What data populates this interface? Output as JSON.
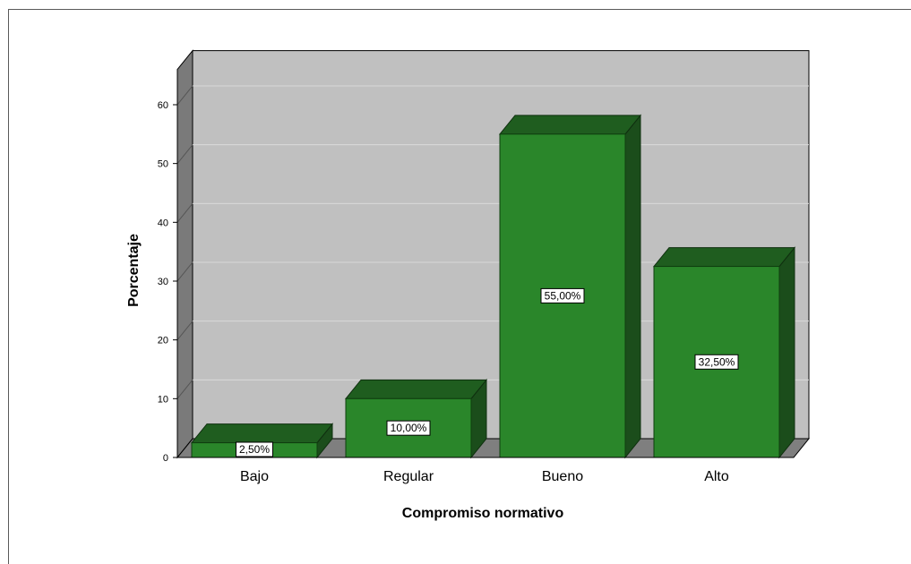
{
  "chart_data": {
    "type": "bar",
    "style": "3d",
    "title": "",
    "xlabel": "Compromiso normativo",
    "ylabel": "Porcentaje",
    "categories": [
      "Bajo",
      "Regular",
      "Bueno",
      "Alto"
    ],
    "values": [
      2.5,
      10.0,
      55.0,
      32.5
    ],
    "data_labels": [
      "2,50%",
      "10,00%",
      "55,00%",
      "32,50%"
    ],
    "yticks": [
      "0",
      "10",
      "20",
      "30",
      "40",
      "50",
      "60"
    ],
    "ylim": [
      0,
      66
    ],
    "grid": true,
    "legend": "none",
    "colors": {
      "bar_front": "#2a862a",
      "bar_top": "#1f5d1f",
      "bar_side": "#1b4d1b",
      "plot_back": "#c0c0c0",
      "wall_left": "#7a7a7a",
      "floor": "#7f7f7f",
      "gridline": "#d9d9d9"
    }
  }
}
